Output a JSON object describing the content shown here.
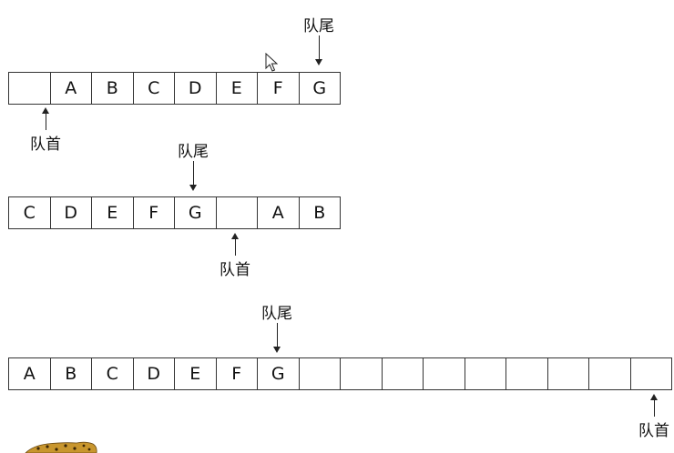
{
  "labels": {
    "tail": "队尾",
    "head": "队首"
  },
  "queue1": {
    "cells": [
      "",
      "A",
      "B",
      "C",
      "D",
      "E",
      "F",
      "G"
    ],
    "head_index": 0,
    "tail_index": 7
  },
  "queue2": {
    "cells": [
      "C",
      "D",
      "E",
      "F",
      "G",
      "",
      "A",
      "B"
    ],
    "head_index": 5,
    "tail_index": 4
  },
  "queue3": {
    "cells": [
      "A",
      "B",
      "C",
      "D",
      "E",
      "F",
      "G",
      "",
      "",
      "",
      "",
      "",
      "",
      "",
      "",
      ""
    ],
    "head_index": 15,
    "tail_index": 6
  },
  "icons": {
    "cursor": "mouse-pointer-icon",
    "mascot": "leopard-icon"
  }
}
